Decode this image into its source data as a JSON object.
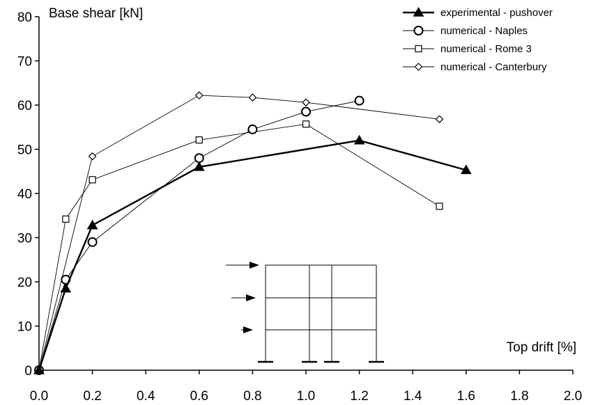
{
  "chart_data": {
    "type": "line",
    "xlabel": "Top drift [%]",
    "ylabel": "Base shear [kN]",
    "xlim": [
      0,
      2.0
    ],
    "ylim": [
      0,
      80
    ],
    "xticks": [
      "0.0",
      "0.2",
      "0.4",
      "0.6",
      "0.8",
      "1.0",
      "1.2",
      "1.4",
      "1.6",
      "1.8",
      "2.0"
    ],
    "yticks": [
      "0",
      "10",
      "20",
      "30",
      "40",
      "50",
      "60",
      "70",
      "80"
    ],
    "grid": false,
    "legend_position": "top-right",
    "series": [
      {
        "name": "experimental - pushover",
        "marker": "filled-triangle",
        "line": "thick",
        "points": [
          [
            0,
            0
          ],
          [
            0.1,
            18.5
          ],
          [
            0.2,
            32.8
          ],
          [
            0.6,
            46.0
          ],
          [
            1.2,
            52.0
          ],
          [
            1.6,
            45.3
          ]
        ]
      },
      {
        "name": "numerical - Naples",
        "marker": "open-circle",
        "line": "thin",
        "points": [
          [
            0,
            0
          ],
          [
            0.1,
            20.5
          ],
          [
            0.2,
            29.0
          ],
          [
            0.6,
            48.0
          ],
          [
            0.8,
            54.5
          ],
          [
            1.0,
            58.5
          ],
          [
            1.2,
            61.0
          ]
        ]
      },
      {
        "name": "numerical - Rome 3",
        "marker": "open-square",
        "line": "thin",
        "points": [
          [
            0,
            0
          ],
          [
            0.1,
            34.2
          ],
          [
            0.2,
            43.1
          ],
          [
            0.6,
            52.1
          ],
          [
            1.0,
            55.7
          ],
          [
            1.5,
            37.1
          ]
        ]
      },
      {
        "name": "numerical - Canterbury",
        "marker": "open-diamond",
        "line": "thin",
        "points": [
          [
            0,
            0
          ],
          [
            0.2,
            48.4
          ],
          [
            0.6,
            62.2
          ],
          [
            0.8,
            61.7
          ],
          [
            1.0,
            60.6
          ],
          [
            1.5,
            56.8
          ]
        ]
      }
    ],
    "inset": {
      "description": "frame-with-lateral-load-arrows",
      "stories": 3,
      "bays": 3,
      "arrows": 3
    }
  }
}
